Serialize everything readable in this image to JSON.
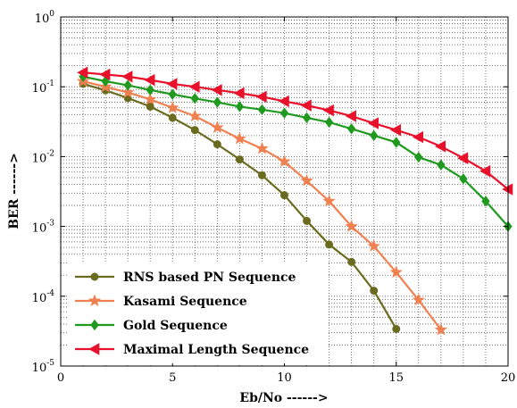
{
  "chart_data": {
    "type": "line",
    "xlabel": "Eb/No ------>",
    "ylabel": "BER ------>",
    "scale_y": "log",
    "xlim": [
      0,
      20
    ],
    "ylim": [
      1e-05,
      1
    ],
    "x_ticks": [
      "0",
      "5",
      "10",
      "15",
      "20"
    ],
    "y_ticks": [
      {
        "base": "10",
        "exp": "0"
      },
      {
        "base": "10",
        "exp": "-1"
      },
      {
        "base": "10",
        "exp": "-2"
      },
      {
        "base": "10",
        "exp": "-3"
      },
      {
        "base": "10",
        "exp": "-4"
      },
      {
        "base": "10",
        "exp": "-5"
      }
    ],
    "grid": "dotted major and minor",
    "legend_position": "bottom-left",
    "series": [
      {
        "name": "RNS based PN Sequence",
        "color": "#6b6b1f",
        "marker": "circle",
        "x": [
          1,
          2,
          3,
          4,
          5,
          6,
          7,
          8,
          9,
          10,
          11,
          12,
          13,
          14,
          15
        ],
        "y": [
          0.11,
          0.089,
          0.069,
          0.052,
          0.036,
          0.024,
          0.015,
          0.0091,
          0.0054,
          0.0028,
          0.0012,
          0.00055,
          0.00031,
          0.00012,
          3.4e-05
        ]
      },
      {
        "name": "Kasami Sequence",
        "color": "#f08050",
        "marker": "star",
        "x": [
          1,
          2,
          3,
          4,
          5,
          6,
          7,
          8,
          9,
          10,
          11,
          12,
          13,
          14,
          15,
          16,
          17
        ],
        "y": [
          0.12,
          0.1,
          0.083,
          0.066,
          0.05,
          0.038,
          0.026,
          0.018,
          0.013,
          0.0085,
          0.0045,
          0.0023,
          0.001,
          0.00052,
          0.00022,
          8.8e-05,
          3.3e-05
        ]
      },
      {
        "name": "Gold Sequence",
        "color": "#1f9a1f",
        "marker": "diamond",
        "x": [
          1,
          2,
          3,
          4,
          5,
          6,
          7,
          8,
          9,
          10,
          11,
          12,
          13,
          14,
          15,
          16,
          17,
          18,
          19,
          20
        ],
        "y": [
          0.14,
          0.12,
          0.105,
          0.09,
          0.078,
          0.068,
          0.06,
          0.052,
          0.047,
          0.042,
          0.036,
          0.031,
          0.025,
          0.02,
          0.016,
          0.0098,
          0.0076,
          0.0048,
          0.0023,
          0.001
        ]
      },
      {
        "name": "Maximal Length Sequence",
        "color": "#e8102a",
        "marker": "triangle-left",
        "x": [
          1,
          2,
          3,
          4,
          5,
          6,
          7,
          8,
          9,
          10,
          11,
          12,
          13,
          14,
          15,
          16,
          17,
          18,
          19,
          20
        ],
        "y": [
          0.16,
          0.15,
          0.14,
          0.125,
          0.11,
          0.1,
          0.09,
          0.081,
          0.072,
          0.062,
          0.054,
          0.046,
          0.038,
          0.03,
          0.024,
          0.019,
          0.014,
          0.0095,
          0.0062,
          0.0034
        ]
      }
    ]
  }
}
